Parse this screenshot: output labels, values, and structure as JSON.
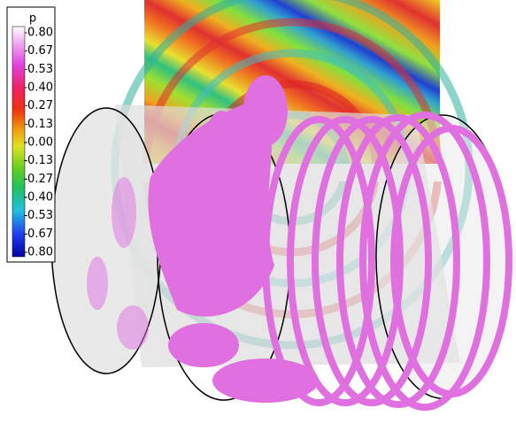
{
  "colorbar": {
    "title": "p",
    "labels": [
      "0.80",
      "0.67",
      "0.53",
      "0.40",
      "0.27",
      "0.13",
      "-0.00",
      "-0.13",
      "-0.27",
      "-0.40",
      "-0.53",
      "-0.67",
      "-0.80"
    ]
  }
}
